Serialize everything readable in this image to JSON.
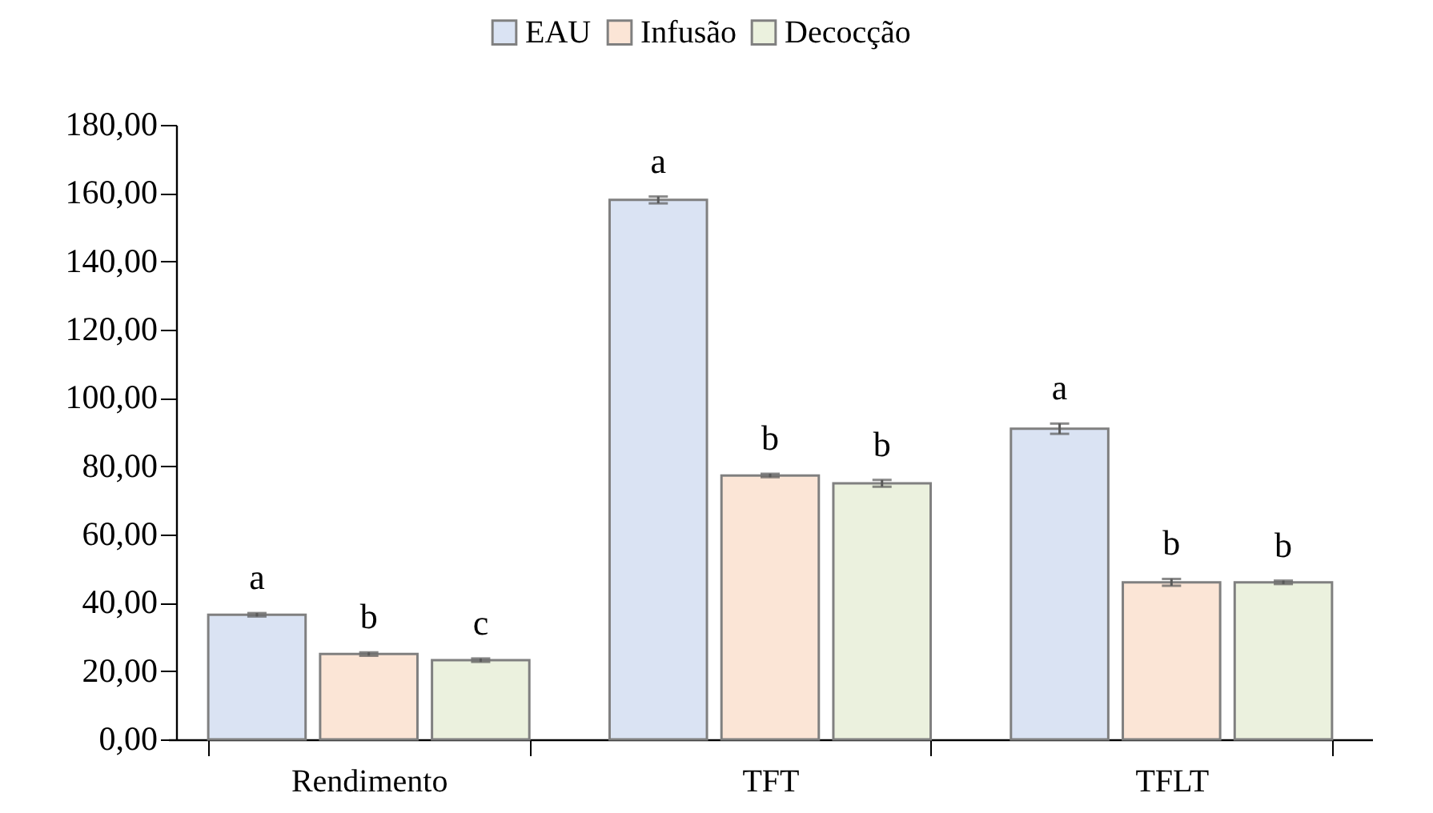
{
  "chart_data": {
    "type": "bar",
    "categories": [
      "Rendimento",
      "TFT",
      "TFLT"
    ],
    "series": [
      {
        "name": "EAU",
        "color": "#dae3f3",
        "values": [
          36.5,
          158,
          91
        ],
        "errors": [
          0.5,
          1,
          1.5
        ],
        "value_labels": [
          "a",
          "a",
          "a"
        ]
      },
      {
        "name": "Infusão",
        "color": "#fbe5d6",
        "values": [
          25,
          77.3,
          46
        ],
        "errors": [
          0.5,
          0.5,
          1
        ],
        "value_labels": [
          "b",
          "b",
          "b"
        ]
      },
      {
        "name": "Decocção",
        "color": "#ebf1de",
        "values": [
          23.2,
          75,
          46
        ],
        "errors": [
          0.5,
          1,
          0.5
        ],
        "value_labels": [
          "c",
          "b",
          "b"
        ]
      }
    ],
    "ylim": [
      0,
      180
    ],
    "yticks": [
      {
        "value": 0,
        "label": "0,00"
      },
      {
        "value": 20,
        "label": "20,00"
      },
      {
        "value": 40,
        "label": "40,00"
      },
      {
        "value": 60,
        "label": "60,00"
      },
      {
        "value": 80,
        "label": "80,00"
      },
      {
        "value": 100,
        "label": "100,00"
      },
      {
        "value": 120,
        "label": "120,00"
      },
      {
        "value": 140,
        "label": "140,00"
      },
      {
        "value": 160,
        "label": "160,00"
      },
      {
        "value": 180,
        "label": "180,00"
      }
    ],
    "legend": "top",
    "grid": false
  }
}
